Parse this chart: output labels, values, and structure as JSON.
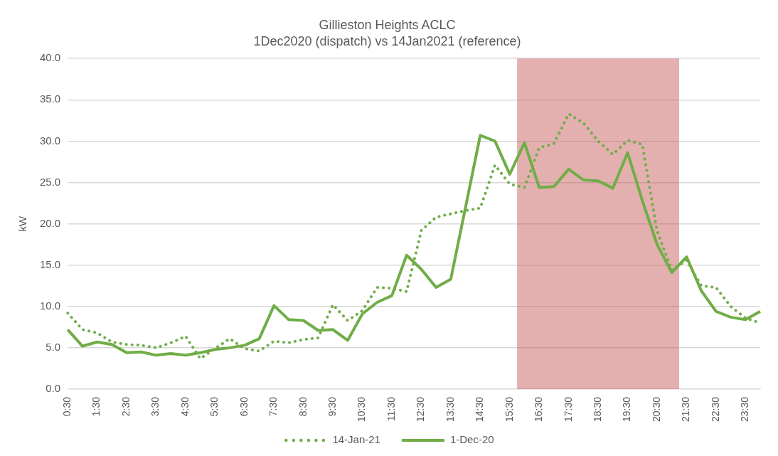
{
  "chart_data": {
    "type": "line",
    "title": "Gillieston Heights ACLC",
    "subtitle": "1Dec2020 (dispatch) vs 14Jan2021 (reference)",
    "ylabel": "kW",
    "categories": [
      "0:30",
      null,
      "1:30",
      null,
      "2:30",
      null,
      "3:30",
      null,
      "4:30",
      null,
      "5:30",
      null,
      "6:30",
      null,
      "7:30",
      null,
      "8:30",
      null,
      "9:30",
      null,
      "10:30",
      null,
      "11:30",
      null,
      "12:30",
      null,
      "13:30",
      null,
      "14:30",
      null,
      "15:30",
      null,
      "16:30",
      null,
      "17:30",
      null,
      "18:30",
      null,
      "19:30",
      null,
      "20:30",
      null,
      "21:30",
      null,
      "22:30",
      null,
      "23:30",
      null
    ],
    "series": [
      {
        "name": "14-Jan-21",
        "color": "#70ad47",
        "line_style": "dotted",
        "values": [
          9.2,
          7.2,
          6.8,
          5.7,
          5.4,
          5.3,
          5.0,
          5.6,
          6.4,
          3.7,
          4.9,
          6.1,
          4.9,
          4.6,
          5.8,
          5.6,
          6.0,
          6.2,
          10.2,
          8.3,
          9.5,
          12.3,
          12.2,
          11.8,
          19.2,
          20.8,
          21.2,
          21.6,
          21.9,
          27.1,
          24.8,
          24.4,
          29.2,
          29.7,
          33.3,
          32.2,
          30.0,
          28.4,
          30.1,
          29.6,
          19.1,
          14.4,
          15.6,
          12.5,
          12.3,
          10.0,
          8.6,
          8.0
        ]
      },
      {
        "name": "1-Dec-20",
        "color": "#70ad47",
        "line_style": "solid",
        "values": [
          7.2,
          5.2,
          5.7,
          5.4,
          4.4,
          4.5,
          4.1,
          4.3,
          4.1,
          4.4,
          4.8,
          5.0,
          5.3,
          6.1,
          10.1,
          8.4,
          8.3,
          7.1,
          7.2,
          5.9,
          9.1,
          10.5,
          11.3,
          16.2,
          14.5,
          12.3,
          13.3,
          22.0,
          30.7,
          30.0,
          26.0,
          29.8,
          24.4,
          24.5,
          26.6,
          25.3,
          25.2,
          24.3,
          28.6,
          22.8,
          17.5,
          14.1,
          16.0,
          11.9,
          9.4,
          8.7,
          8.4,
          9.4
        ]
      }
    ],
    "ylim": [
      0,
      40
    ],
    "yticks": [
      {
        "value": 0,
        "label": "0.0"
      },
      {
        "value": 5,
        "label": "5.0"
      },
      {
        "value": 10,
        "label": "10.0"
      },
      {
        "value": 15,
        "label": "15.0"
      },
      {
        "value": 20,
        "label": "20.0"
      },
      {
        "value": 25,
        "label": "25.0"
      },
      {
        "value": 30,
        "label": "30.0"
      },
      {
        "value": 35,
        "label": "35.0"
      },
      {
        "value": 40,
        "label": "40.0"
      }
    ],
    "bands": [
      {
        "axis": "x",
        "from": "15:30",
        "to": "21:30",
        "color": "#c0504d"
      }
    ],
    "grid": "y",
    "legend": "bottom",
    "marker": "none"
  }
}
